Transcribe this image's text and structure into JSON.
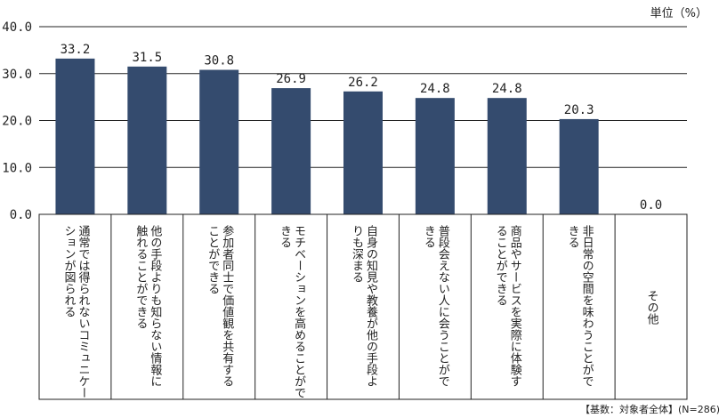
{
  "chart_data": {
    "type": "bar",
    "unit_label": "単位（%）",
    "footer": "【基数：対象者全体】(N=286)",
    "ylim": [
      0,
      40
    ],
    "yticks": [
      "40.0",
      "30.0",
      "20.0",
      "10.0",
      "0.0"
    ],
    "ytick_values": [
      40,
      30,
      20,
      10,
      0
    ],
    "bar_color": "#344b6e",
    "categories": [
      [
        "通常では得られないコミュニケー",
        "ションが図られる"
      ],
      [
        "他の手段よりも知らない情報に",
        "触れることができる"
      ],
      [
        "参加者同士で価値観を共有する",
        "ことができる"
      ],
      [
        "モチベーションを高めることがで",
        "きる"
      ],
      [
        "自身の知見や教養が他の手段よ",
        "りも深まる"
      ],
      [
        "普段会えない人に会うことがで",
        "きる"
      ],
      [
        "商品やサービスを実際に体験す",
        "ることができる"
      ],
      [
        "非日常の空間を味わうことがで",
        "きる"
      ],
      [
        "その他"
      ]
    ],
    "values": [
      33.2,
      31.5,
      30.8,
      26.9,
      26.2,
      24.8,
      24.8,
      20.3,
      0.0
    ],
    "value_labels": [
      "33.2",
      "31.5",
      "30.8",
      "26.9",
      "26.2",
      "24.8",
      "24.8",
      "20.3",
      "0.0"
    ]
  }
}
